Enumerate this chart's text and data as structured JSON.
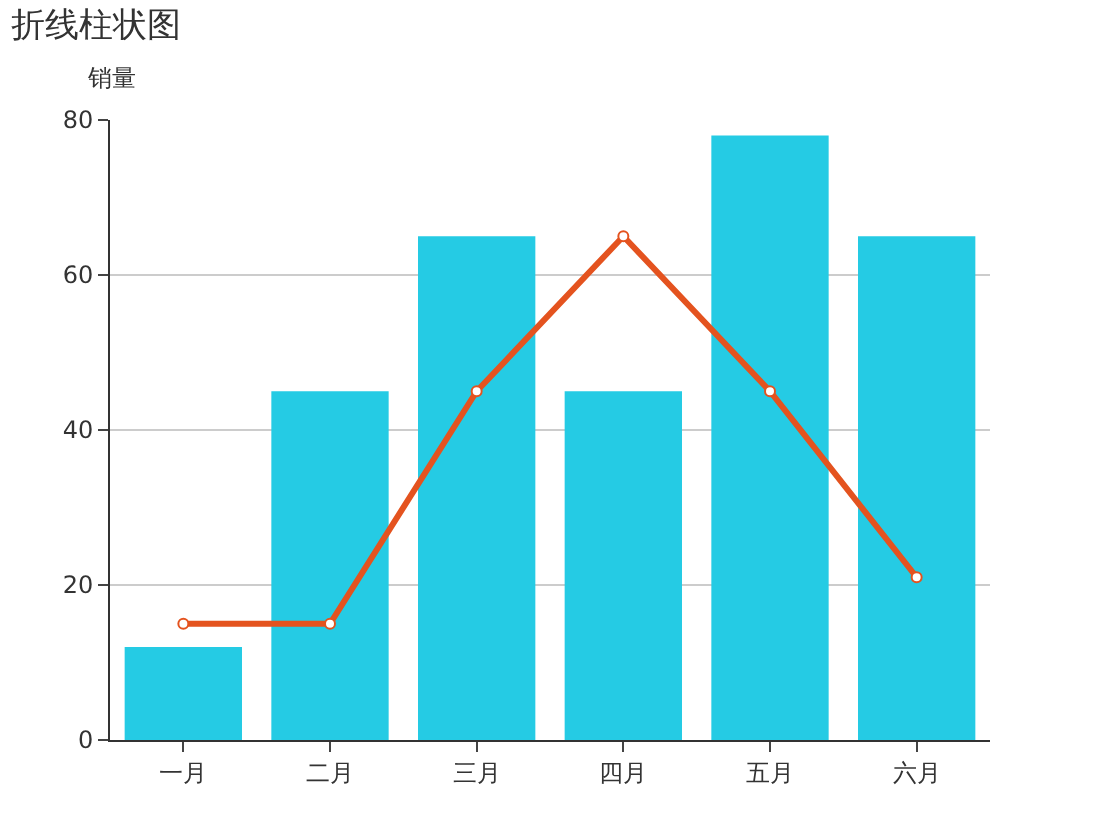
{
  "chart_data": {
    "type": "bar",
    "title": "折线柱状图",
    "ylabel": "销量",
    "categories": [
      "一月",
      "二月",
      "三月",
      "四月",
      "五月",
      "六月"
    ],
    "series": [
      {
        "color": "#25cbe4",
        "values": [
          12,
          45,
          65,
          45,
          78,
          65
        ]
      },
      {
        "type": "line",
        "color": "#e4531f",
        "values": [
          15,
          15,
          45,
          65,
          45,
          21
        ],
        "marker": "circle"
      }
    ],
    "ylim": [
      0,
      80
    ],
    "yticks": [
      0,
      20,
      40,
      60,
      80
    ],
    "grid": "y"
  }
}
